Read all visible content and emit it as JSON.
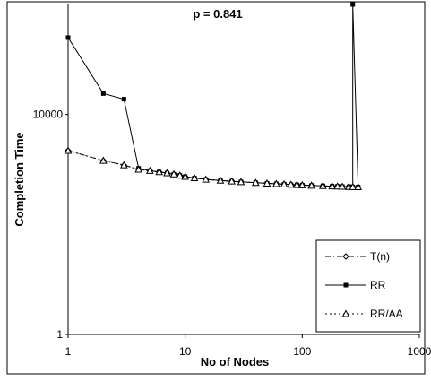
{
  "chart_data": {
    "type": "line",
    "title": "p = 0.841",
    "xlabel": "No of Nodes",
    "ylabel": "Completion Time",
    "xscale": "log",
    "yscale": "log",
    "xlim": [
      1,
      1000
    ],
    "ylim": [
      1,
      1000000
    ],
    "x_ticks": [
      1,
      10,
      100,
      1000
    ],
    "x_tick_labels": [
      "1",
      "10",
      "100",
      "1000"
    ],
    "y_ticks": [
      1,
      10000
    ],
    "y_tick_labels": [
      "1",
      "10000"
    ],
    "legend_position": "bottom-right",
    "grid": false,
    "series": [
      {
        "name": "T(n)",
        "style": "dash-dot",
        "marker": "diamond",
        "color": "#000000",
        "x": [
          1,
          2,
          3,
          4,
          5,
          6,
          7,
          8,
          9,
          10,
          12,
          15,
          20,
          25,
          30,
          40,
          50,
          60,
          70,
          80,
          90,
          100,
          120,
          150,
          180,
          200,
          220,
          250,
          270,
          300
        ],
        "y": [
          2200,
          1450,
          1200,
          1000,
          950,
          900,
          860,
          820,
          780,
          740,
          700,
          660,
          630,
          610,
          595,
          575,
          560,
          548,
          540,
          532,
          525,
          520,
          512,
          504,
          498,
          494,
          490,
          486,
          483,
          480
        ]
      },
      {
        "name": "RR",
        "style": "solid",
        "marker": "square",
        "color": "#000000",
        "x": [
          1,
          2,
          3,
          4,
          5,
          6,
          7,
          8,
          9,
          10,
          12,
          15,
          20,
          25,
          30,
          40,
          50,
          60,
          70,
          80,
          90,
          100,
          120,
          150,
          180,
          200,
          220,
          250,
          260,
          270,
          270,
          300
        ],
        "y": [
          250000,
          24000,
          19000,
          1050,
          950,
          900,
          860,
          820,
          780,
          740,
          700,
          660,
          630,
          610,
          595,
          575,
          560,
          548,
          540,
          532,
          525,
          520,
          512,
          504,
          498,
          494,
          490,
          486,
          484,
          483,
          1000000,
          480
        ]
      },
      {
        "name": "RR/AA",
        "style": "dotted",
        "marker": "triangle",
        "color": "#000000",
        "x": [
          1,
          2,
          3,
          4,
          5,
          6,
          7,
          8,
          9,
          10,
          12,
          15,
          20,
          25,
          30,
          40,
          50,
          60,
          70,
          80,
          90,
          100,
          120,
          150,
          180,
          200,
          220,
          250,
          270,
          300
        ],
        "y": [
          2200,
          1450,
          1200,
          1000,
          950,
          900,
          860,
          820,
          780,
          740,
          700,
          660,
          630,
          610,
          595,
          575,
          560,
          548,
          540,
          532,
          525,
          520,
          512,
          504,
          498,
          494,
          490,
          486,
          483,
          480
        ]
      }
    ]
  }
}
